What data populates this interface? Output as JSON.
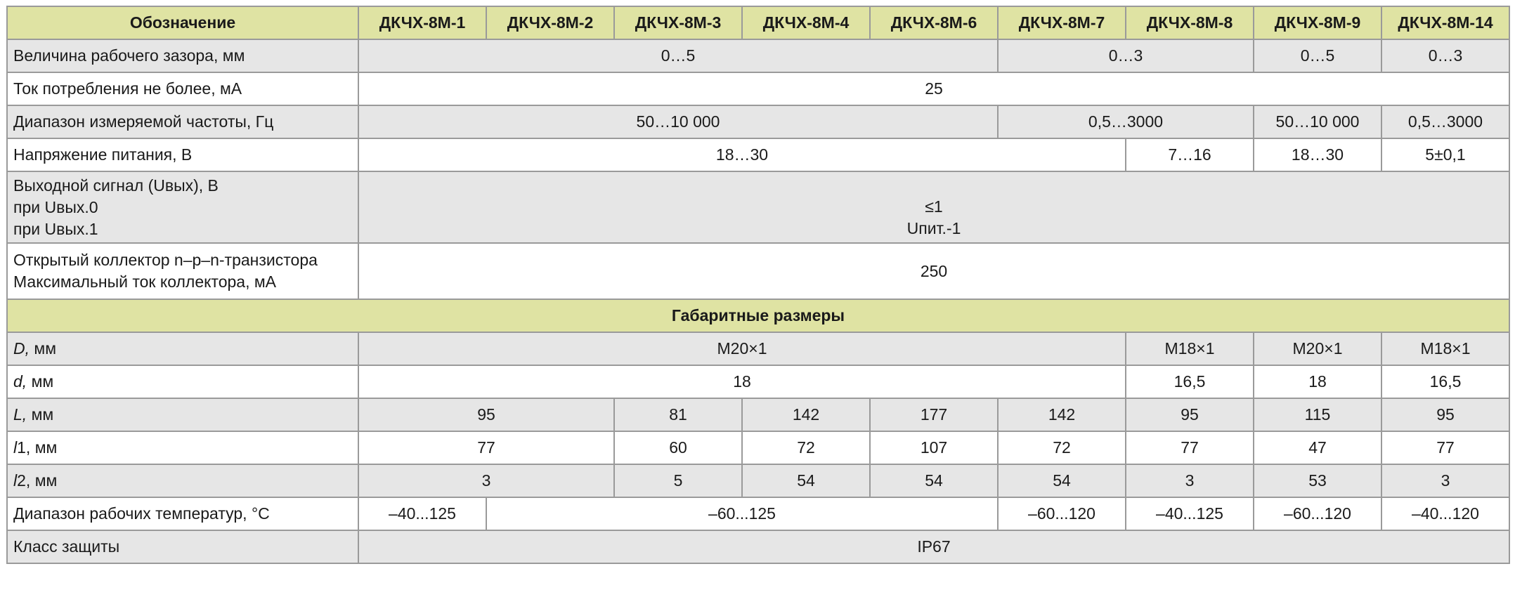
{
  "table": {
    "header": [
      "Обозначение",
      "ДКЧХ-8М-1",
      "ДКЧХ-8М-2",
      "ДКЧХ-8М-3",
      "ДКЧХ-8М-4",
      "ДКЧХ-8М-6",
      "ДКЧХ-8М-7",
      "ДКЧХ-8М-8",
      "ДКЧХ-8М-9",
      "ДКЧХ-8М-14"
    ],
    "rows": [
      [
        "Величина рабочего зазора, мм",
        "0…5",
        "0…3",
        "0…5",
        "0…3"
      ],
      [
        "Ток потребления не более, мА",
        "25"
      ],
      [
        "Диапазон измеряемой частоты, Гц",
        "50…10 000",
        "0,5…3000",
        "50…10 000",
        "0,5…3000"
      ],
      [
        "Напряжение питания, В",
        "18…30",
        "7…16",
        "18…30",
        "5±0,1"
      ],
      [
        [
          "Выходной сигнал (Uвых), В",
          "при Uвых.0",
          "при Uвых.1"
        ],
        [
          "≤1",
          "Uпит.-1"
        ]
      ],
      [
        [
          "Открытый коллектор n–p–n-транзистора",
          "Максимальный ток коллектора, мА"
        ],
        "250"
      ],
      [
        "Габаритные размеры"
      ],
      [
        "D, мм",
        "М20×1",
        "М18×1",
        "М20×1",
        "М18×1"
      ],
      [
        "d, мм",
        "18",
        "16,5",
        "18",
        "16,5"
      ],
      [
        "L, мм",
        "95",
        "81",
        "142",
        "177",
        "142",
        "95",
        "115",
        "95"
      ],
      [
        "l1, мм",
        "77",
        "60",
        "72",
        "107",
        "72",
        "77",
        "47",
        "77"
      ],
      [
        "l2, мм",
        "3",
        "5",
        "54",
        "54",
        "54",
        "3",
        "53",
        "3"
      ],
      [
        "Диапазон рабочих температур, °С",
        "–40...125",
        "–60...125",
        "–60...120",
        "–40...125",
        "–60...120",
        "–40...120"
      ],
      [
        "Класс защиты",
        "IP67"
      ]
    ]
  }
}
